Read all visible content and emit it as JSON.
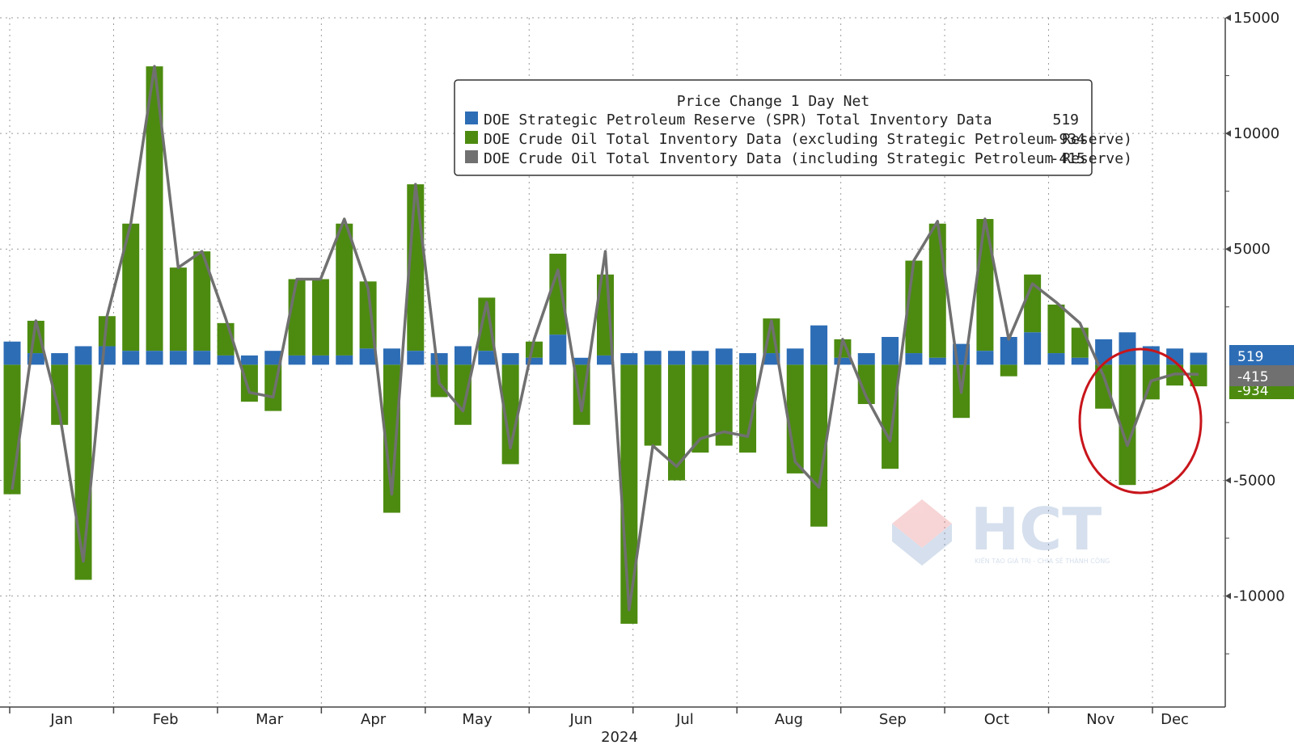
{
  "chart_data": {
    "type": "bar",
    "title": "Price Change 1 Day Net",
    "x_label": "2024",
    "months": [
      "Jan",
      "Feb",
      "Mar",
      "Apr",
      "May",
      "Jun",
      "Jul",
      "Aug",
      "Sep",
      "Oct",
      "Nov",
      "Dec"
    ],
    "y_ticks": [
      15000,
      10000,
      5000,
      -5000,
      -10000
    ],
    "y_tick_labels": [
      "15000",
      "10000",
      "5000",
      "-5000",
      "-10000"
    ],
    "ylim": [
      -14800,
      15000
    ],
    "grid": true,
    "legend_position": "top-center",
    "series": [
      {
        "name": "DOE Strategic Petroleum Reserve (SPR) Total Inventory Data",
        "last_value": "519",
        "color": "#2d6db5",
        "values": [
          1000,
          500,
          500,
          800,
          800,
          600,
          600,
          600,
          600,
          400,
          400,
          600,
          400,
          400,
          400,
          700,
          700,
          600,
          500,
          800,
          600,
          500,
          300,
          1300,
          300,
          400,
          500,
          600,
          600,
          600,
          700,
          500,
          500,
          700,
          1700,
          300,
          500,
          1200,
          500,
          300,
          900,
          600,
          1200,
          1400,
          500,
          300,
          1100,
          1400,
          800,
          700,
          519
        ]
      },
      {
        "name": "DOE Crude Oil Total Inventory Data (excluding Strategic Petroleum Reserve)",
        "last_value": "-934",
        "color": "#4c8b10",
        "values": [
          -5600,
          1400,
          -2600,
          -9300,
          1300,
          5500,
          12300,
          3600,
          4300,
          1400,
          -1600,
          -2000,
          3300,
          3300,
          5700,
          2900,
          -6400,
          7200,
          -1400,
          -2600,
          2300,
          -4300,
          700,
          3500,
          -2600,
          3500,
          -11200,
          -3500,
          -5000,
          -3800,
          -3500,
          -3800,
          1500,
          -4700,
          -7000,
          800,
          -1700,
          -4500,
          4000,
          5800,
          -2300,
          5700,
          -500,
          2500,
          2100,
          1300,
          -1900,
          -5200,
          -1500,
          -900,
          -934
        ]
      },
      {
        "name": "DOE Crude Oil Total Inventory Data (including Strategic Petroleum Reserve)",
        "last_value": "-415",
        "color": "#707070",
        "values": [
          -5400,
          1900,
          -2100,
          -8500,
          2100,
          6100,
          12900,
          4200,
          4900,
          2000,
          -1200,
          -1400,
          3700,
          3700,
          6300,
          3300,
          -5600,
          7800,
          -800,
          -2000,
          2700,
          -3600,
          1100,
          4100,
          -2000,
          4900,
          -10600,
          -3500,
          -4400,
          -3200,
          -2900,
          -3100,
          1900,
          -4200,
          -5300,
          1100,
          -1400,
          -3300,
          4500,
          6200,
          -1200,
          6300,
          1100,
          3500,
          2700,
          1800,
          -500,
          -3500,
          -700,
          -400,
          -415
        ]
      }
    ]
  },
  "watermark": {
    "brand": "HCT",
    "tagline": "KIẾN TẠO GIÁ TRỊ - CHIA SẺ THÀNH CÔNG"
  }
}
